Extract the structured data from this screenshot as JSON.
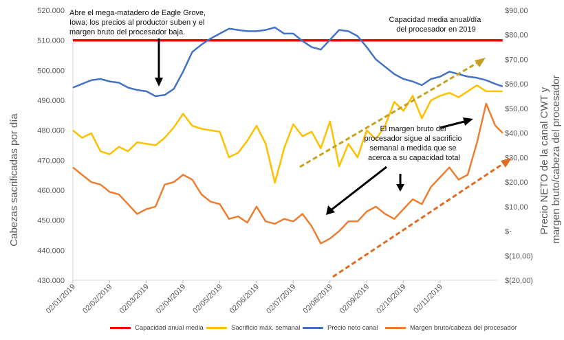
{
  "chart_data": {
    "type": "line",
    "x": [
      "02/01/2019",
      "02/02/2019",
      "02/03/2019",
      "02/04/2019",
      "02/05/2019",
      "02/06/2019",
      "02/07/2019",
      "02/08/2019",
      "02/09/2019",
      "02/10/2019",
      "02/11/2019"
    ],
    "ylabel_left": "Cabezas sacrificadas por día",
    "ylabel_right": [
      "Precio NETO de la canal CWT y",
      "margen bruto/cabeza del procesador"
    ],
    "ylim_left": [
      430000,
      520000
    ],
    "ylim_right": [
      -20,
      90
    ],
    "left_ticks": [
      "430.000",
      "440.000",
      "450.000",
      "460.000",
      "470.000",
      "480.000",
      "490.000",
      "500.000",
      "510.000",
      "520.000"
    ],
    "right_ticks": [
      "$(20,00)",
      "$(10,00)",
      "$-",
      "$10,00",
      "$20,00",
      "$30,00",
      "$40,00",
      "$50,00",
      "$60,00",
      "$70,00",
      "$80,00",
      "$90,00"
    ],
    "series": [
      {
        "name": "Capacidad anual media",
        "color": "#ff0000",
        "axis": "left",
        "values": [
          [
            0,
            510000
          ],
          [
            11.7,
            510000
          ]
        ]
      },
      {
        "name": "Sacrificio máx. semanal",
        "color": "#ffc000",
        "axis": "left",
        "values": [
          [
            0,
            480000
          ],
          [
            0.25,
            477500
          ],
          [
            0.5,
            479000
          ],
          [
            0.75,
            473000
          ],
          [
            1.0,
            472000
          ],
          [
            1.25,
            474500
          ],
          [
            1.5,
            473000
          ],
          [
            1.75,
            476000
          ],
          [
            2.0,
            475500
          ],
          [
            2.25,
            475000
          ],
          [
            2.5,
            477500
          ],
          [
            2.75,
            481000
          ],
          [
            3.0,
            485500
          ],
          [
            3.25,
            481500
          ],
          [
            3.5,
            480500
          ],
          [
            3.75,
            480000
          ],
          [
            4.0,
            479500
          ],
          [
            4.25,
            471000
          ],
          [
            4.5,
            472500
          ],
          [
            4.75,
            476500
          ],
          [
            5.0,
            481500
          ],
          [
            5.25,
            475500
          ],
          [
            5.5,
            462500
          ],
          [
            5.75,
            474000
          ],
          [
            6.0,
            482000
          ],
          [
            6.25,
            478000
          ],
          [
            6.5,
            479500
          ],
          [
            6.75,
            474000
          ],
          [
            7.0,
            483000
          ],
          [
            7.25,
            468000
          ],
          [
            7.5,
            475500
          ],
          [
            7.75,
            471000
          ],
          [
            8.0,
            480000
          ],
          [
            8.25,
            477000
          ],
          [
            8.5,
            481500
          ],
          [
            8.75,
            489500
          ],
          [
            9.0,
            486500
          ],
          [
            9.25,
            491500
          ],
          [
            9.5,
            484000
          ],
          [
            9.75,
            490000
          ],
          [
            10.0,
            491500
          ],
          [
            10.25,
            492500
          ],
          [
            10.5,
            491000
          ],
          [
            10.75,
            493000
          ],
          [
            11.0,
            495000
          ],
          [
            11.25,
            493000
          ],
          [
            11.5,
            493000
          ],
          [
            11.7,
            493000
          ]
        ]
      },
      {
        "name": "Precio neto canal",
        "color": "#4472c4",
        "axis": "right",
        "values": [
          [
            0,
            58.5
          ],
          [
            0.25,
            60
          ],
          [
            0.5,
            61.5
          ],
          [
            0.75,
            62
          ],
          [
            1.0,
            61
          ],
          [
            1.25,
            60.5
          ],
          [
            1.5,
            58.5
          ],
          [
            1.75,
            57.5
          ],
          [
            2.0,
            57
          ],
          [
            2.25,
            55
          ],
          [
            2.5,
            55.5
          ],
          [
            2.75,
            58
          ],
          [
            3.0,
            65
          ],
          [
            3.25,
            73
          ],
          [
            3.5,
            76
          ],
          [
            3.75,
            78.5
          ],
          [
            4.0,
            80.5
          ],
          [
            4.25,
            82.5
          ],
          [
            4.5,
            82
          ],
          [
            4.75,
            81.5
          ],
          [
            5.0,
            81.5
          ],
          [
            5.25,
            82
          ],
          [
            5.5,
            83
          ],
          [
            5.75,
            80.5
          ],
          [
            6.0,
            80.5
          ],
          [
            6.25,
            77.5
          ],
          [
            6.5,
            75
          ],
          [
            6.75,
            74
          ],
          [
            7.0,
            78
          ],
          [
            7.25,
            82
          ],
          [
            7.5,
            81.5
          ],
          [
            7.75,
            79.5
          ],
          [
            8.0,
            75
          ],
          [
            8.25,
            70
          ],
          [
            8.5,
            67
          ],
          [
            8.75,
            64
          ],
          [
            9.0,
            62
          ],
          [
            9.25,
            61
          ],
          [
            9.5,
            59.5
          ],
          [
            9.75,
            62
          ],
          [
            10.0,
            63
          ],
          [
            10.25,
            65
          ],
          [
            10.5,
            64
          ],
          [
            10.75,
            63
          ],
          [
            11.0,
            62.5
          ],
          [
            11.25,
            61.5
          ],
          [
            11.5,
            60
          ],
          [
            11.7,
            59
          ]
        ]
      },
      {
        "name": "Margen bruto/cabeza del procesador",
        "color": "#ed7d31",
        "axis": "right",
        "values": [
          [
            0,
            26
          ],
          [
            0.25,
            23
          ],
          [
            0.5,
            20
          ],
          [
            0.75,
            19
          ],
          [
            1.0,
            16
          ],
          [
            1.25,
            15
          ],
          [
            1.5,
            11
          ],
          [
            1.75,
            7
          ],
          [
            2.0,
            9
          ],
          [
            2.25,
            10
          ],
          [
            2.5,
            19
          ],
          [
            2.75,
            20
          ],
          [
            3.0,
            23
          ],
          [
            3.25,
            21
          ],
          [
            3.5,
            15
          ],
          [
            3.75,
            12
          ],
          [
            4.0,
            11
          ],
          [
            4.25,
            5
          ],
          [
            4.5,
            6
          ],
          [
            4.75,
            3.5
          ],
          [
            5.0,
            10
          ],
          [
            5.25,
            4
          ],
          [
            5.5,
            3
          ],
          [
            5.75,
            5
          ],
          [
            6.0,
            4
          ],
          [
            6.25,
            7
          ],
          [
            6.5,
            2
          ],
          [
            6.75,
            -5
          ],
          [
            7.0,
            -3
          ],
          [
            7.25,
            0
          ],
          [
            7.5,
            4
          ],
          [
            7.75,
            4
          ],
          [
            8.0,
            8
          ],
          [
            8.25,
            10
          ],
          [
            8.5,
            7
          ],
          [
            8.75,
            5
          ],
          [
            9.0,
            9
          ],
          [
            9.25,
            13
          ],
          [
            9.5,
            11
          ],
          [
            9.75,
            18
          ],
          [
            10.0,
            22
          ],
          [
            10.25,
            26
          ],
          [
            10.5,
            21
          ],
          [
            10.75,
            23
          ],
          [
            11.0,
            36
          ],
          [
            11.25,
            52
          ],
          [
            11.5,
            43
          ],
          [
            11.7,
            40
          ]
        ]
      }
    ]
  },
  "annotations": {
    "eagle_grove": [
      "Abre el mega-matadero de Eagle Grove,",
      "Iowa; los precios al productor suben y el",
      "margen bruto del procesador baja."
    ],
    "capacity": [
      "Capacidad media anual/día",
      "del procesador en 2019"
    ],
    "margin": [
      "El margen bruto del",
      "procesador sigue al sacrificio",
      "semanal a medida que se",
      "acerca a su capacidad total"
    ]
  },
  "legend": {
    "items": [
      {
        "label": "Capacidad anual media",
        "color": "#ff0000"
      },
      {
        "label": "Sacrificio máx. semanal",
        "color": "#ffc000"
      },
      {
        "label": "Precio neto canal",
        "color": "#4472c4"
      },
      {
        "label": "Margen bruto/cabeza del procesador",
        "color": "#ed7d31"
      }
    ]
  }
}
